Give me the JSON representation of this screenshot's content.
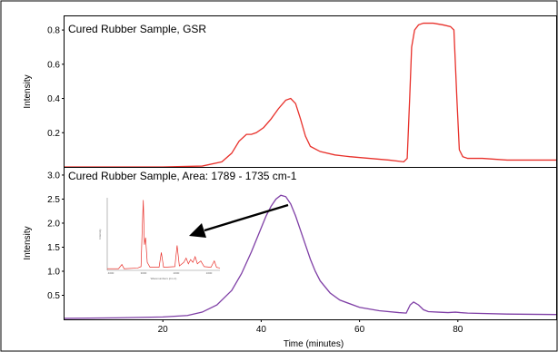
{
  "chart_data": [
    {
      "type": "line",
      "title": "Cured Rubber Sample, GSR",
      "ylabel": "Intensity",
      "xlabel": "",
      "xlim": [
        0,
        100
      ],
      "ylim": [
        0,
        0.88
      ],
      "yticks": [
        0.2,
        0.4,
        0.6,
        0.8
      ],
      "xticks": [],
      "grid": false,
      "series": [
        {
          "color": "#e8302a",
          "x": [
            0,
            10,
            20,
            28,
            32,
            34,
            35.5,
            37,
            38,
            39,
            40.5,
            42,
            43.5,
            45,
            46,
            47,
            48,
            49,
            50,
            52,
            55,
            58,
            62,
            66,
            69,
            69.7,
            70.2,
            70.6,
            71.2,
            72,
            73,
            75,
            77,
            78.5,
            79.2,
            79.8,
            80.3,
            81,
            82,
            85,
            90,
            95,
            100
          ],
          "y": [
            0,
            0,
            0,
            0.005,
            0.03,
            0.08,
            0.15,
            0.19,
            0.19,
            0.2,
            0.23,
            0.28,
            0.34,
            0.39,
            0.4,
            0.37,
            0.28,
            0.18,
            0.12,
            0.09,
            0.07,
            0.06,
            0.05,
            0.04,
            0.03,
            0.05,
            0.4,
            0.7,
            0.8,
            0.83,
            0.84,
            0.84,
            0.83,
            0.82,
            0.8,
            0.4,
            0.1,
            0.06,
            0.05,
            0.05,
            0.04,
            0.04,
            0.04
          ]
        }
      ]
    },
    {
      "type": "line",
      "title": "Cured Rubber Sample, Area: 1789 - 1735 cm-1",
      "ylabel": "Intensity",
      "xlabel": "Time (minutes)",
      "xlim": [
        0,
        100
      ],
      "ylim": [
        0,
        3.15
      ],
      "yticks": [
        0.5,
        1.0,
        1.5,
        2.0,
        2.5,
        3.0
      ],
      "xticks": [
        20,
        40,
        60,
        80
      ],
      "grid": false,
      "series": [
        {
          "color": "#7f3fa6",
          "x": [
            0,
            10,
            20,
            25,
            28,
            31,
            34,
            36,
            38,
            40,
            41,
            42,
            43,
            44,
            45,
            46,
            47,
            48,
            49,
            50,
            51,
            52,
            54,
            56,
            60,
            64,
            68,
            69.5,
            70.3,
            71,
            72,
            73,
            74,
            76,
            78,
            79.5,
            80.5,
            82,
            90,
            100
          ],
          "y": [
            0.02,
            0.03,
            0.05,
            0.08,
            0.15,
            0.3,
            0.6,
            0.95,
            1.4,
            1.9,
            2.15,
            2.35,
            2.5,
            2.58,
            2.55,
            2.4,
            2.15,
            1.85,
            1.55,
            1.25,
            1.0,
            0.8,
            0.55,
            0.4,
            0.25,
            0.18,
            0.14,
            0.13,
            0.3,
            0.36,
            0.3,
            0.2,
            0.16,
            0.15,
            0.14,
            0.15,
            0.14,
            0.13,
            0.11,
            0.1
          ]
        }
      ],
      "annotations": [
        {
          "type": "arrow",
          "label": ""
        }
      ]
    }
  ],
  "inset": {
    "description_hidden": true,
    "color": "#e8302a",
    "xlabel": "Wavenumbers (cm-1)",
    "ylabel": "Intensity",
    "xtick_labels": [
      "4000",
      "3000",
      "2000",
      "1000"
    ]
  }
}
